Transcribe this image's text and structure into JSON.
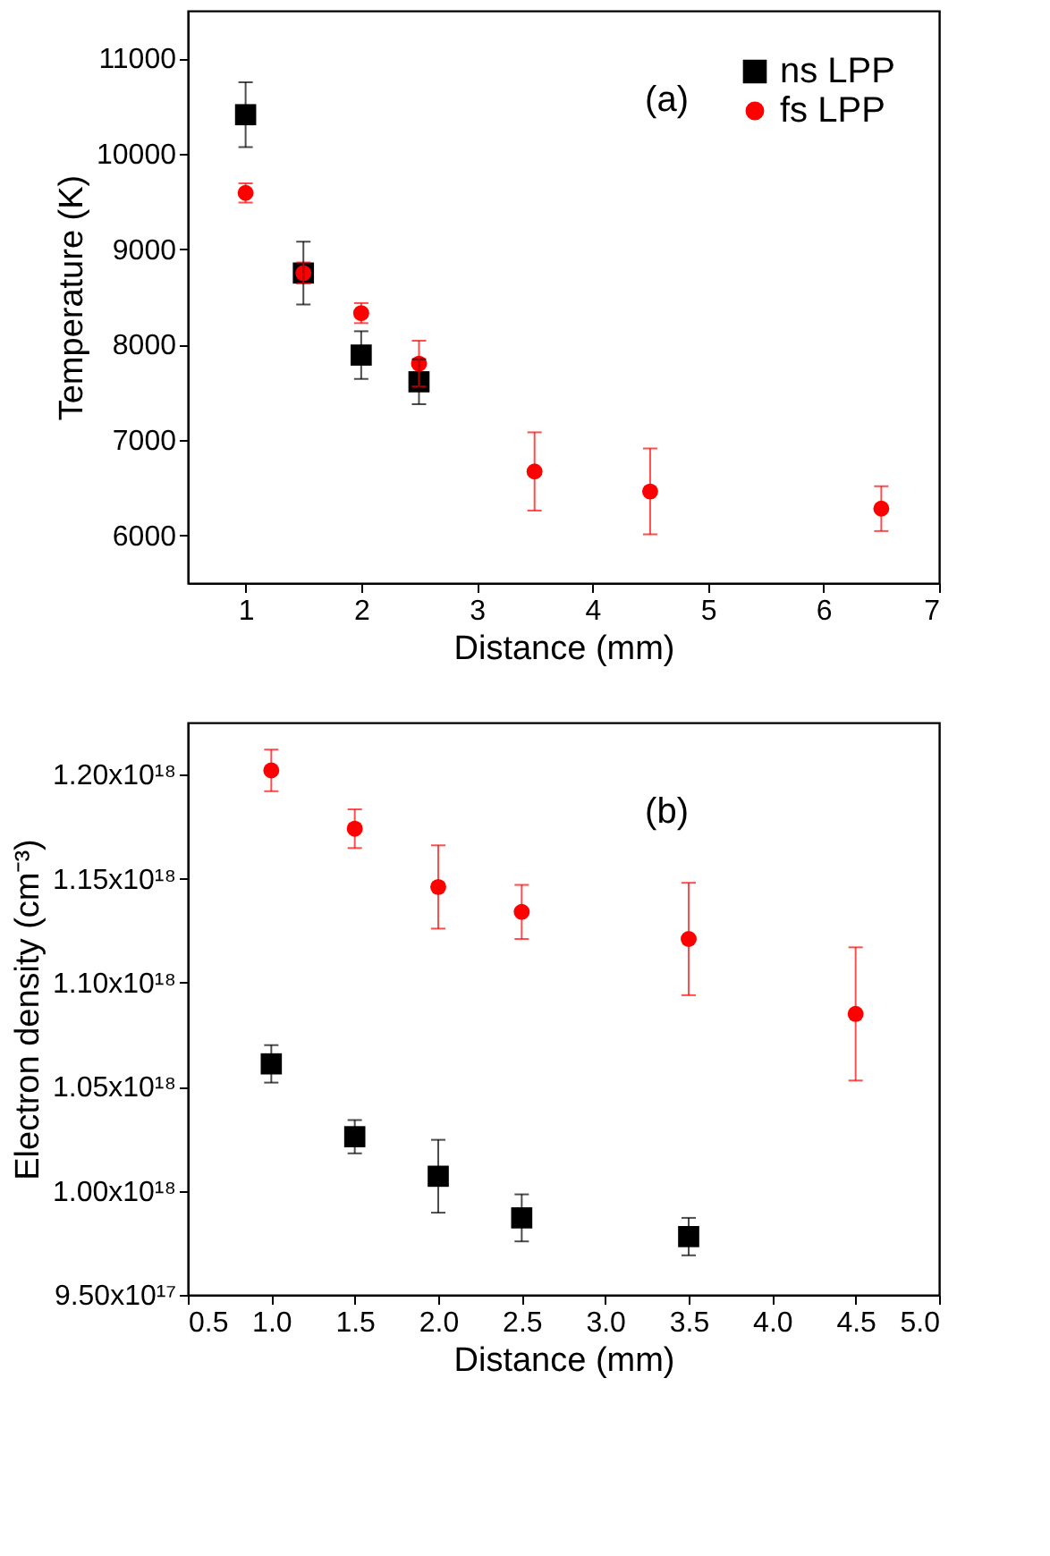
{
  "chart_data": [
    {
      "type": "scatter",
      "xlabel": "Distance (mm)",
      "ylabel": "Temperature (K)",
      "annotations": [
        "(a)"
      ],
      "xlim": [
        0.5,
        7
      ],
      "xticks": [
        1,
        2,
        3,
        4,
        5,
        6,
        7
      ],
      "ylim": [
        5500,
        11500
      ],
      "yticks": [
        6000,
        7000,
        8000,
        9000,
        10000,
        11000
      ],
      "grid": false,
      "legend": "top right",
      "series": [
        {
          "name": "ns LPP",
          "color": "#000000",
          "marker": "square",
          "x": [
            1,
            1.5,
            2,
            2.5
          ],
          "values": [
            10410,
            8750,
            7890,
            7610
          ],
          "errors": [
            340,
            330,
            250,
            235
          ]
        },
        {
          "name": "fs LPP",
          "color": "#ff0000",
          "marker": "circle",
          "x": [
            1,
            1.5,
            2,
            2.5,
            3.5,
            4.5,
            6.5
          ],
          "values": [
            9590,
            8750,
            8330,
            7800,
            6670,
            6460,
            6280
          ],
          "errors": [
            100,
            110,
            105,
            240,
            410,
            450,
            235
          ]
        }
      ]
    },
    {
      "type": "scatter",
      "xlabel": "Distance (mm)",
      "ylabel": "Electron density (cm⁻³)",
      "annotations": [
        "(b)"
      ],
      "xlim": [
        0.5,
        5.0
      ],
      "xticks": [
        {
          "value": 0.5,
          "label": "0.5"
        },
        {
          "value": 1,
          "label": "1.0"
        },
        {
          "value": 1.5,
          "label": "1.5"
        },
        {
          "value": 2,
          "label": "2.0"
        },
        {
          "value": 2.5,
          "label": "2.5"
        },
        {
          "value": 3,
          "label": "3.0"
        },
        {
          "value": 3.5,
          "label": "3.5"
        },
        {
          "value": 4,
          "label": "4.0"
        },
        {
          "value": 4.5,
          "label": "4.5"
        },
        {
          "value": 5,
          "label": "5.0"
        }
      ],
      "ylim": [
        9.5e+17,
        1.225e+18
      ],
      "yticks": [
        {
          "value": 9.5e+17,
          "label": "9.50x10¹⁷"
        },
        {
          "value": 1e+18,
          "label": "1.00x10¹⁸"
        },
        {
          "value": 1.05e+18,
          "label": "1.05x10¹⁸"
        },
        {
          "value": 1.1e+18,
          "label": "1.10x10¹⁸"
        },
        {
          "value": 1.15e+18,
          "label": "1.15x10¹⁸"
        },
        {
          "value": 1.2e+18,
          "label": "1.20x10¹⁸"
        }
      ],
      "grid": false,
      "legend": "top right",
      "series": [
        {
          "name": "ns LPP",
          "color": "#000000",
          "marker": "square",
          "x": [
            1,
            1.5,
            2,
            2.5,
            3.5
          ],
          "values": [
            1.061e+18,
            1.026e+18,
            1.007e+18,
            9.87e+17,
            9.78e+17
          ],
          "errors": [
            9000000000000000.0,
            8000000000000000.0,
            1.75e+16,
            1.13e+16,
            9000000000000000.0
          ]
        },
        {
          "name": "fs LPP",
          "color": "#ff0000",
          "marker": "circle",
          "x": [
            1,
            1.5,
            2,
            2.5,
            3.5,
            4.5
          ],
          "values": [
            1.202e+18,
            1.174e+18,
            1.146e+18,
            1.134e+18,
            1.121e+18,
            1.085e+18
          ],
          "errors": [
            1e+16,
            9300000000000000.0,
            2e+16,
            1.3e+16,
            2.7e+16,
            3.2e+16
          ]
        }
      ]
    }
  ]
}
